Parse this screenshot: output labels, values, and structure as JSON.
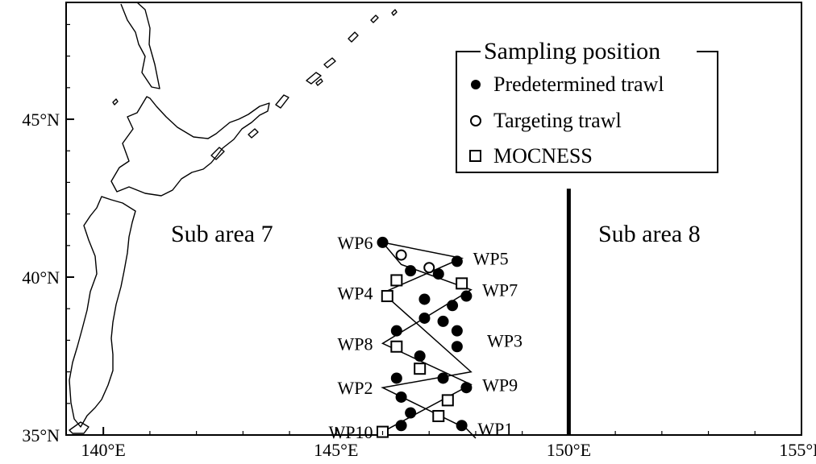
{
  "map": {
    "lon_range": [
      139.2,
      155
    ],
    "lat_range": [
      35,
      48.7
    ],
    "x_ticks": [
      {
        "value": 140,
        "label": "140°E"
      },
      {
        "value": 145,
        "label": "145°E"
      },
      {
        "value": 150,
        "label": "150°E"
      },
      {
        "value": 155,
        "label": "155°E"
      }
    ],
    "y_ticks": [
      {
        "value": 35,
        "label": "35°N"
      },
      {
        "value": 40,
        "label": "40°N"
      },
      {
        "value": 45,
        "label": "45°N"
      }
    ],
    "boundary_lon": 150,
    "boundary_lat_range": [
      35,
      42.8
    ],
    "area_labels": {
      "west": "Sub area 7",
      "east": "Sub area 8"
    }
  },
  "legend": {
    "title": "Sampling position",
    "items": [
      {
        "symbol": "filled-circle",
        "label": "Predetermined trawl"
      },
      {
        "symbol": "open-circle",
        "label": "Targeting trawl"
      },
      {
        "symbol": "open-square",
        "label": "MOCNESS"
      }
    ]
  },
  "waypoints": [
    {
      "label": "WP1",
      "lon": 147.8,
      "lat": 35.2
    },
    {
      "label": "WP2",
      "lon": 146.0,
      "lat": 36.5
    },
    {
      "label": "WP3",
      "lon": 148.0,
      "lat": 38.0
    },
    {
      "label": "WP4",
      "lon": 146.0,
      "lat": 39.5
    },
    {
      "label": "WP5",
      "lon": 147.7,
      "lat": 40.6
    },
    {
      "label": "WP6",
      "lon": 146.0,
      "lat": 41.1
    },
    {
      "label": "WP7",
      "lon": 147.9,
      "lat": 39.6
    },
    {
      "label": "WP8",
      "lon": 146.0,
      "lat": 37.9
    },
    {
      "label": "WP9",
      "lon": 147.9,
      "lat": 36.6
    },
    {
      "label": "WP10",
      "lon": 146.0,
      "lat": 35.1
    }
  ],
  "track": [
    [
      146.0,
      41.1
    ],
    [
      147.7,
      40.6
    ],
    [
      146.0,
      39.5
    ],
    [
      147.9,
      37.0
    ],
    [
      146.0,
      36.5
    ],
    [
      147.8,
      35.2
    ],
    [
      148.0,
      34.9
    ]
  ],
  "track2": [
    [
      146.0,
      35.1
    ],
    [
      147.9,
      36.6
    ],
    [
      146.0,
      37.9
    ],
    [
      147.9,
      39.6
    ],
    [
      146.4,
      40.4
    ],
    [
      146.0,
      41.1
    ]
  ],
  "samples": {
    "predetermined": [
      [
        146.0,
        41.1
      ],
      [
        146.6,
        40.2
      ],
      [
        147.2,
        40.1
      ],
      [
        147.6,
        40.5
      ],
      [
        147.5,
        39.1
      ],
      [
        146.9,
        39.3
      ],
      [
        147.8,
        39.4
      ],
      [
        146.3,
        38.3
      ],
      [
        146.9,
        38.7
      ],
      [
        147.3,
        38.6
      ],
      [
        147.6,
        38.3
      ],
      [
        146.8,
        37.5
      ],
      [
        147.6,
        37.8
      ],
      [
        146.3,
        36.8
      ],
      [
        146.4,
        36.2
      ],
      [
        147.3,
        36.8
      ],
      [
        147.8,
        36.5
      ],
      [
        146.6,
        35.7
      ],
      [
        146.4,
        35.3
      ],
      [
        147.7,
        35.3
      ]
    ],
    "targeting": [
      [
        146.4,
        40.7
      ],
      [
        147.0,
        40.3
      ]
    ],
    "mocness": [
      [
        146.3,
        39.9
      ],
      [
        146.1,
        39.4
      ],
      [
        147.7,
        39.8
      ],
      [
        146.3,
        37.8
      ],
      [
        146.8,
        37.1
      ],
      [
        147.4,
        36.1
      ],
      [
        147.2,
        35.6
      ],
      [
        146.0,
        35.1
      ]
    ]
  }
}
